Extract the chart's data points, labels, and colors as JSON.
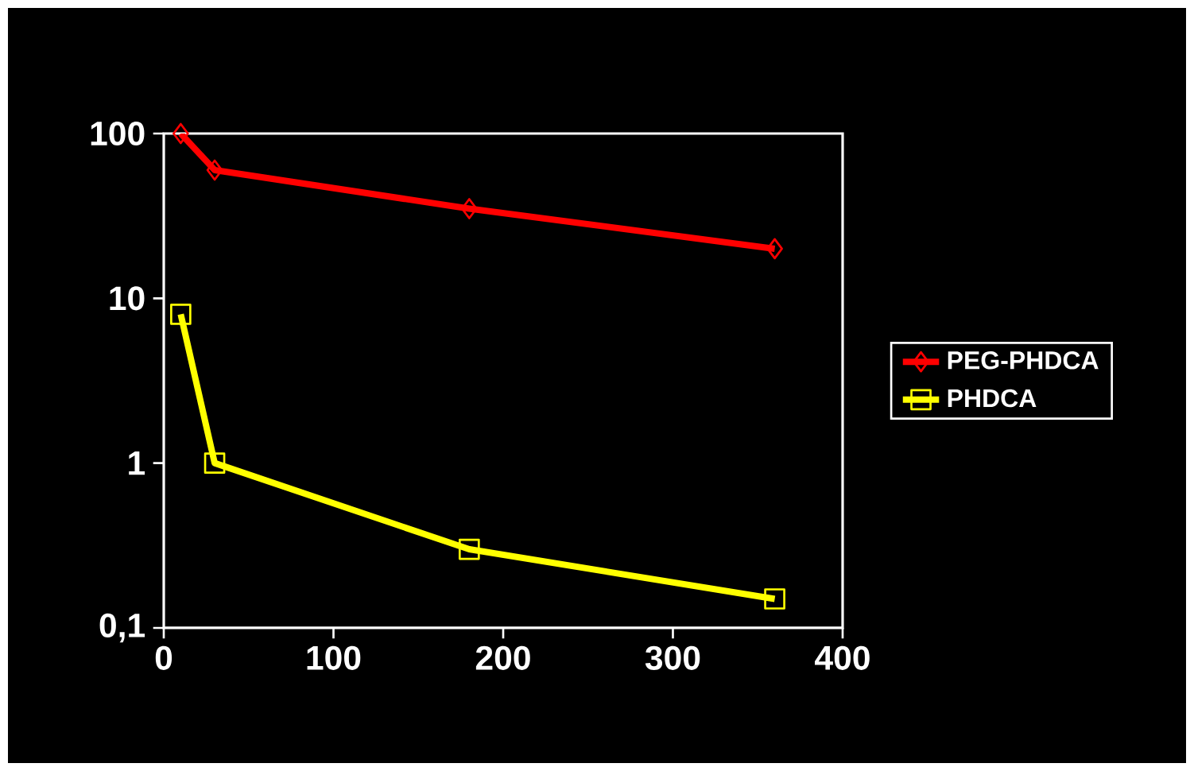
{
  "chart_data": {
    "type": "line",
    "log": "y",
    "x": [
      10,
      30,
      180,
      360
    ],
    "series": [
      {
        "name": "PEG-PHDCA",
        "color": "#ff0000",
        "marker": "diamond",
        "values": [
          100,
          60,
          35,
          20
        ]
      },
      {
        "name": "PHDCA",
        "color": "#ffff00",
        "marker": "square",
        "values": [
          8,
          1,
          0.3,
          0.15
        ]
      }
    ],
    "xlim": [
      0,
      400
    ],
    "xticks": [
      0,
      100,
      200,
      300,
      400
    ],
    "ylim": [
      0.1,
      100
    ],
    "yticks": [
      {
        "value": 0.1,
        "label": "0,1"
      },
      1,
      10,
      100
    ],
    "grid": false,
    "legend": "right"
  }
}
